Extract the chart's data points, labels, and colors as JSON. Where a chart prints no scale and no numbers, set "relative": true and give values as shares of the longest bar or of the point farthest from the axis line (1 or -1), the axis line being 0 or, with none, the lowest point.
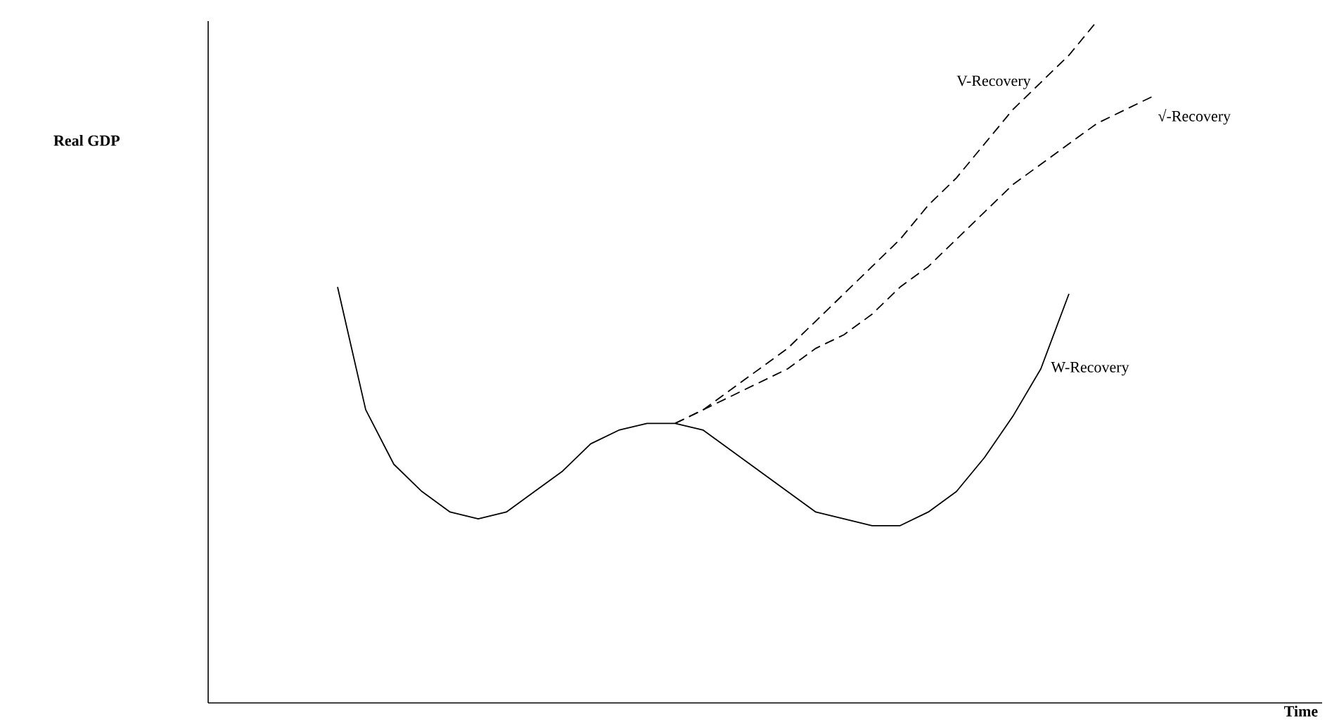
{
  "chart_data": {
    "type": "line",
    "relative": true,
    "annotations": [
      "Real GDP",
      "Time"
    ],
    "categories": [
      null,
      null,
      null,
      null,
      null,
      null,
      null,
      null,
      null,
      null,
      null,
      null,
      null,
      null,
      null,
      null,
      null,
      null,
      null,
      null,
      null,
      null,
      null,
      null,
      null,
      null,
      null,
      null,
      null,
      null
    ],
    "series": [
      {
        "name": "W-Recovery",
        "color": "#000000",
        "line_style": "solid",
        "values": [
          0.61,
          0.43,
          0.35,
          0.31,
          0.28,
          0.27,
          0.28,
          0.31,
          0.34,
          0.38,
          0.4,
          0.41,
          0.41,
          0.4,
          0.37,
          0.34,
          0.31,
          0.28,
          0.27,
          0.26,
          0.26,
          0.28,
          0.31,
          0.36,
          0.42,
          0.49,
          0.6,
          null,
          null,
          null
        ]
      },
      {
        "name": "V-Recovery",
        "color": "#000000",
        "line_style": "dashed",
        "values": [
          null,
          null,
          null,
          null,
          null,
          null,
          null,
          null,
          null,
          null,
          null,
          null,
          0.41,
          0.43,
          0.46,
          0.49,
          0.52,
          0.56,
          0.6,
          0.64,
          0.68,
          0.73,
          0.77,
          0.82,
          0.87,
          0.91,
          0.95,
          1.0,
          null,
          null
        ]
      },
      {
        "name": "√-Recovery",
        "color": "#000000",
        "line_style": "dashed",
        "values": [
          null,
          null,
          null,
          null,
          null,
          null,
          null,
          null,
          null,
          null,
          null,
          null,
          0.41,
          0.43,
          0.45,
          0.47,
          0.49,
          0.52,
          0.54,
          0.57,
          0.61,
          0.64,
          0.68,
          0.72,
          0.76,
          0.79,
          0.82,
          0.85,
          0.87,
          0.89
        ]
      }
    ]
  }
}
